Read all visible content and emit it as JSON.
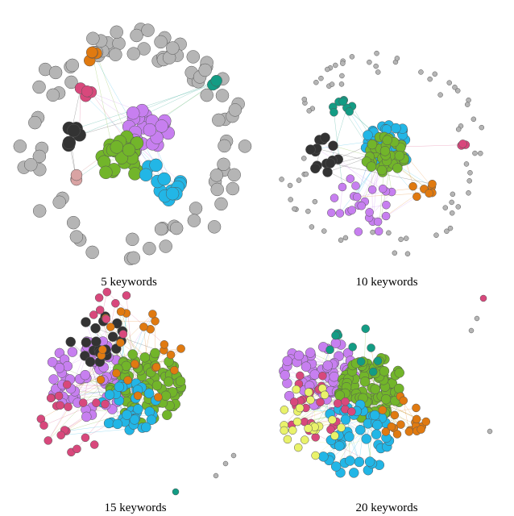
{
  "panels": [
    {
      "caption": "5 keywords"
    },
    {
      "caption": "10 keywords"
    },
    {
      "caption": "15 keywords"
    },
    {
      "caption": "20 keywords"
    }
  ]
}
